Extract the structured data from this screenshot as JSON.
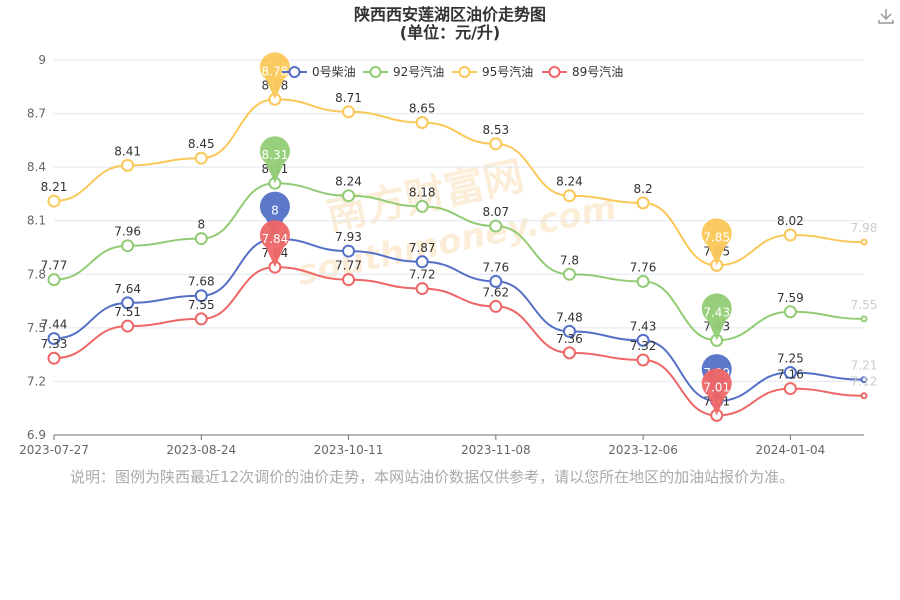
{
  "chart_data": {
    "type": "line",
    "title": "陕西西安莲湖区油价走势图",
    "subtitle": "(单位：元/升)",
    "xlabel": "",
    "ylabel": "",
    "ylim": [
      6.9,
      9
    ],
    "yticks": [
      "6.9",
      "7.2",
      "7.5",
      "7.8",
      "8.1",
      "8.4",
      "8.7",
      "9"
    ],
    "x_tick_labels": [
      "2023-07-27",
      "2023-08-24",
      "2023-10-11",
      "2023-11-08",
      "2023-12-06",
      "2024-01-04"
    ],
    "x_tick_indices": [
      0,
      2,
      4,
      6,
      8,
      10
    ],
    "point_count": 12,
    "grid": "horizontal",
    "legend_position": "top",
    "series": [
      {
        "name": "0号柴油",
        "color": "#5470c6",
        "values": [
          7.44,
          7.64,
          7.68,
          8.0,
          7.93,
          7.87,
          7.76,
          7.48,
          7.43,
          7.09,
          7.25,
          7.21
        ],
        "labels": [
          "7.44",
          "7.64",
          "7.68",
          "8",
          "7.93",
          "7.87",
          "7.76",
          "7.48",
          "7.43",
          "7.09",
          "7.25",
          "7.21"
        ],
        "max_index": 3,
        "min_index": 9
      },
      {
        "name": "92号汽油",
        "color": "#91cc75",
        "values": [
          7.77,
          7.96,
          8.0,
          8.31,
          8.24,
          8.18,
          8.07,
          7.8,
          7.76,
          7.43,
          7.59,
          7.55
        ],
        "labels": [
          "7.77",
          "7.96",
          "8",
          "8.31",
          "8.24",
          "8.18",
          "8.07",
          "7.8",
          "7.76",
          "7.43",
          "7.59",
          "7.55"
        ],
        "max_index": 3,
        "min_index": 9
      },
      {
        "name": "95号汽油",
        "color": "#fac858",
        "values": [
          8.21,
          8.41,
          8.45,
          8.78,
          8.71,
          8.65,
          8.53,
          8.24,
          8.2,
          7.85,
          8.02,
          7.98
        ],
        "labels": [
          "8.21",
          "8.41",
          "8.45",
          "8.78",
          "8.71",
          "8.65",
          "8.53",
          "8.24",
          "8.2",
          "7.85",
          "8.02",
          "7.98"
        ],
        "max_index": 3,
        "min_index": 9
      },
      {
        "name": "89号汽油",
        "color": "#ee6666",
        "values": [
          7.33,
          7.51,
          7.55,
          7.84,
          7.77,
          7.72,
          7.62,
          7.36,
          7.32,
          7.01,
          7.16,
          7.12
        ],
        "labels": [
          "7.33",
          "7.51",
          "7.55",
          "7.84",
          "7.77",
          "7.72",
          "7.62",
          "7.36",
          "7.32",
          "7.01",
          "7.16",
          "7.12"
        ],
        "max_index": 3,
        "min_index": 9
      }
    ]
  },
  "watermark": "南方财富网",
  "watermark_url": "southmoney.com",
  "note": "说明：图例为陕西最近12次调价的油价走势，本网站油价数据仅供参考，请以您所在地区的加油站报价为准。",
  "icons": {
    "download": "download-icon"
  }
}
